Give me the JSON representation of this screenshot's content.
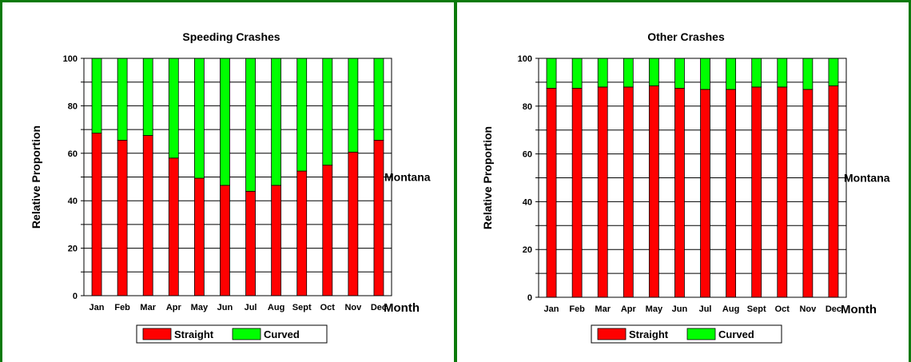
{
  "chart_data": [
    {
      "type": "bar",
      "stacked": true,
      "title": "Speeding Crashes",
      "ylabel": "Relative Proportion",
      "xlabel": "Month",
      "side_label": "Montana",
      "ylim": [
        0,
        100
      ],
      "yticks": [
        0,
        20,
        40,
        60,
        80,
        100
      ],
      "grid": true,
      "legend_placement": "bottom",
      "categories": [
        "Jan",
        "Feb",
        "Mar",
        "Apr",
        "May",
        "Jun",
        "Jul",
        "Aug",
        "Sept",
        "Oct",
        "Nov",
        "Dec"
      ],
      "series": [
        {
          "name": "Straight",
          "color": "#ff0000",
          "values": [
            68.5,
            65.5,
            67.5,
            58,
            49.5,
            46.5,
            44,
            46.5,
            52.5,
            55,
            60.5,
            65.5
          ]
        },
        {
          "name": "Curved",
          "color": "#00ff00",
          "values": [
            31.5,
            34.5,
            32.5,
            42,
            50.5,
            53.5,
            56,
            53.5,
            47.5,
            45,
            39.5,
            34.5
          ]
        }
      ]
    },
    {
      "type": "bar",
      "stacked": true,
      "title": "Other Crashes",
      "ylabel": "Relative Proportion",
      "xlabel": "Month",
      "side_label": "Montana",
      "ylim": [
        0,
        100
      ],
      "yticks": [
        0,
        20,
        40,
        60,
        80,
        100
      ],
      "grid": true,
      "legend_placement": "bottom",
      "categories": [
        "Jan",
        "Feb",
        "Mar",
        "Apr",
        "May",
        "Jun",
        "Jul",
        "Aug",
        "Sept",
        "Oct",
        "Nov",
        "Dec"
      ],
      "series": [
        {
          "name": "Straight",
          "color": "#ff0000",
          "values": [
            87.5,
            87.5,
            88,
            88,
            88.5,
            87.5,
            87,
            87,
            88,
            88,
            87,
            88.5
          ]
        },
        {
          "name": "Curved",
          "color": "#00ff00",
          "values": [
            12.5,
            12.5,
            12,
            12,
            11.5,
            12.5,
            13,
            13,
            12,
            12,
            13,
            11.5
          ]
        }
      ]
    }
  ]
}
